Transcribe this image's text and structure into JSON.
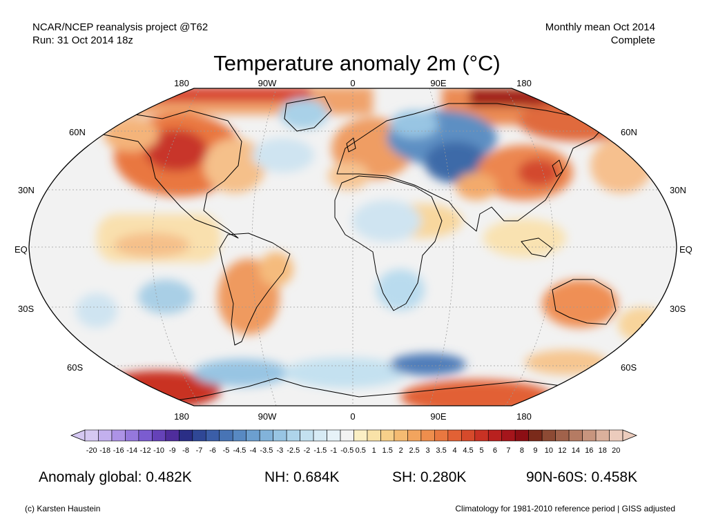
{
  "header": {
    "source": "NCAR/NCEP reanalysis project @T62",
    "run": "Run: 31 Oct 2014 18z",
    "period": "Monthly mean Oct 2014",
    "status": "Complete"
  },
  "title": "Temperature anomaly 2m (°C)",
  "map": {
    "projection": "Robinson",
    "lon_labels_top": [
      "180",
      "90W",
      "0",
      "90E",
      "180"
    ],
    "lon_labels_bottom": [
      "180",
      "90W",
      "0",
      "90E",
      "180"
    ],
    "lat_labels_left": [
      "60N",
      "30N",
      "EQ",
      "30S",
      "60S"
    ],
    "lat_labels_right": [
      "60N",
      "30N",
      "EQ",
      "30S",
      "60S"
    ],
    "colors": {
      "ocean_neutral": "#f2f2f2",
      "coastline": "#000000",
      "graticule": "#9a9a9a"
    }
  },
  "colorbar": {
    "ticks": [
      "-20",
      "-18",
      "-16",
      "-14",
      "-12",
      "-10",
      "-9",
      "-8",
      "-7",
      "-6",
      "-5",
      "-4.5",
      "-4",
      "-3.5",
      "-3",
      "-2.5",
      "-2",
      "-1.5",
      "-1",
      "-0.5",
      "0.5",
      "1",
      "1.5",
      "2",
      "2.5",
      "3",
      "3.5",
      "4",
      "4.5",
      "5",
      "6",
      "7",
      "8",
      "9",
      "10",
      "12",
      "14",
      "16",
      "18",
      "20"
    ],
    "colors": [
      "#d5c8f2",
      "#c3b0ee",
      "#ad93e6",
      "#9578dc",
      "#7b5cd0",
      "#6542b8",
      "#4f2d9c",
      "#2a2e86",
      "#2f4796",
      "#3b5ea8",
      "#4874b5",
      "#5889c2",
      "#6c9fcf",
      "#82b3da",
      "#98c5e3",
      "#aed4ea",
      "#c4e1f0",
      "#d7ebf5",
      "#e7f2f8",
      "#f3f3f3",
      "#fbefc4",
      "#f9e2a8",
      "#f7d08a",
      "#f5bb72",
      "#f2a45e",
      "#ee8e4d",
      "#e97840",
      "#e26135",
      "#d64a2b",
      "#c93224",
      "#b9211f",
      "#a5151b",
      "#8c0e14",
      "#7a2a1a",
      "#8d4a34",
      "#a1624b",
      "#b57b63",
      "#c8957e",
      "#dbb09c",
      "#ecccbd"
    ]
  },
  "stats": {
    "global": "Anomaly global: 0.482K",
    "nh": "NH: 0.684K",
    "sh": "SH: 0.280K",
    "arctic": "90N-60S: 0.458K"
  },
  "footer": {
    "credit": "(c) Karsten Haustein",
    "note": "Climatology for 1981-2010 reference period | GISS adjusted"
  }
}
